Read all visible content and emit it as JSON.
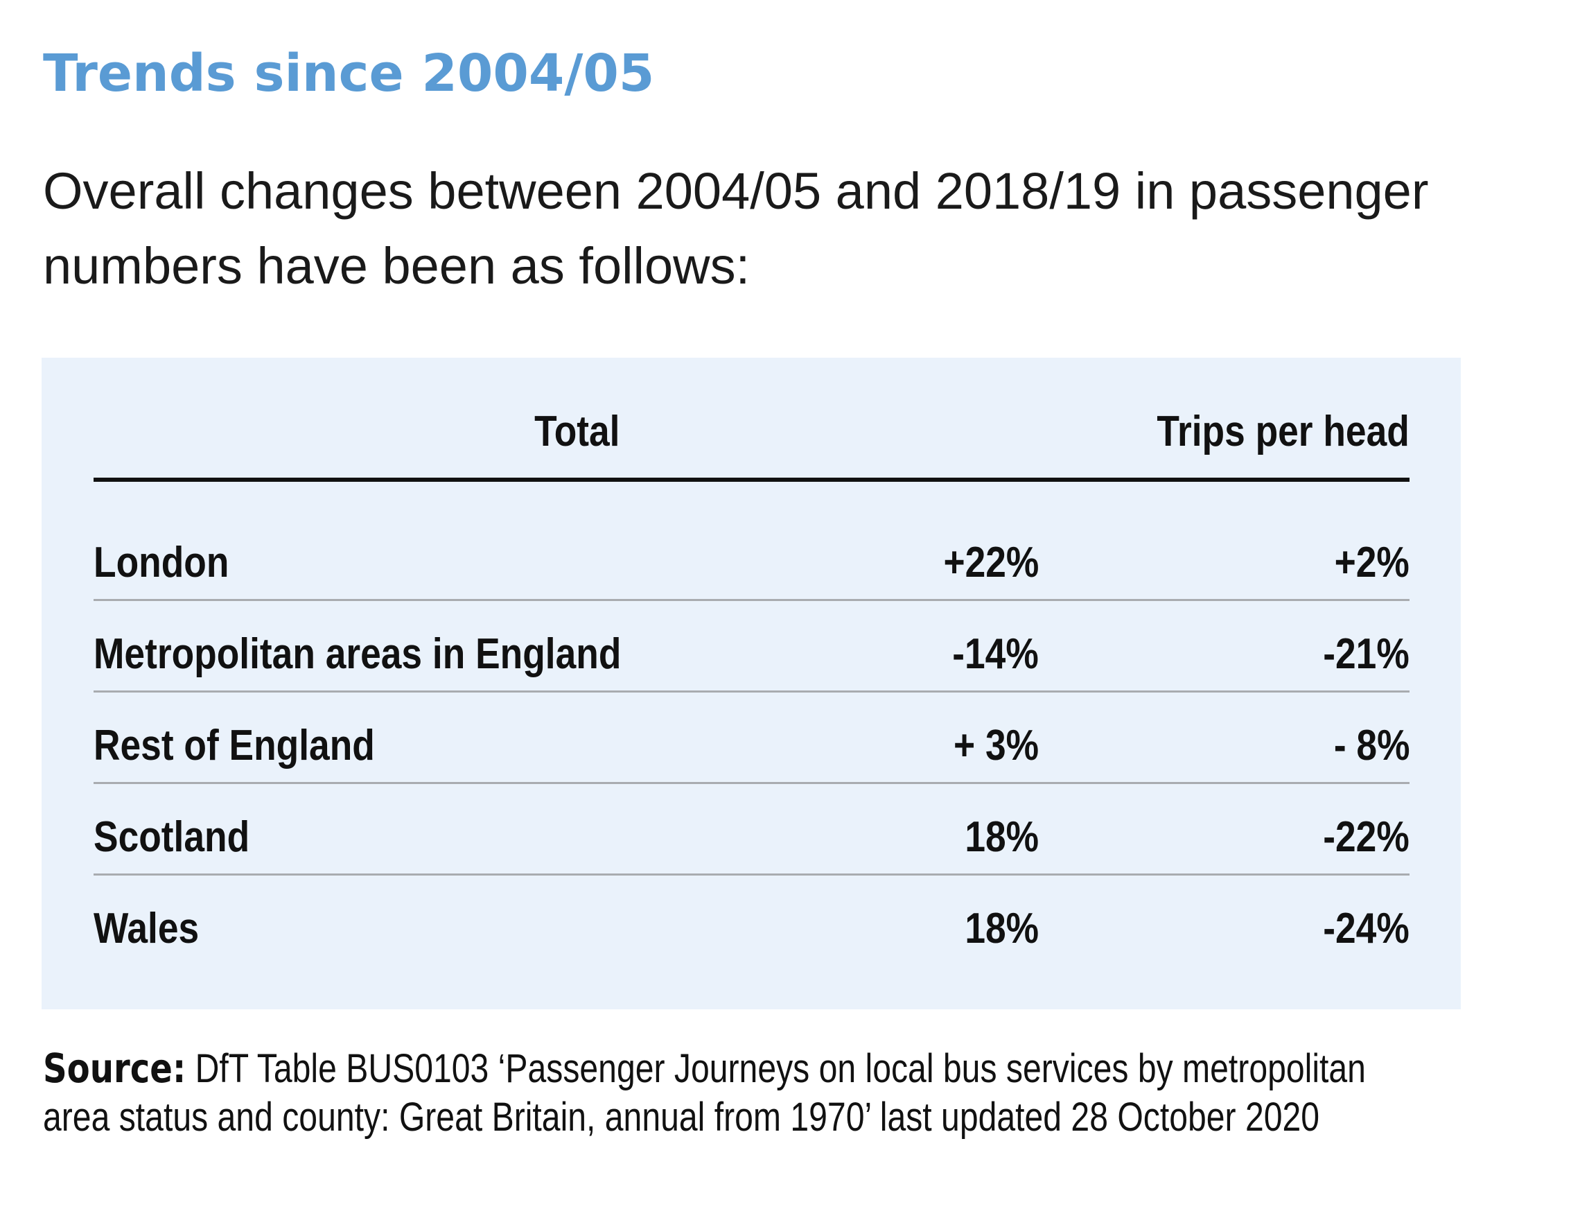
{
  "heading": "Trends since 2004/05",
  "intro": {
    "line1": "Overall changes between 2004/05 and 2018/19 in passenger",
    "line2": "numbers have been as follows:"
  },
  "table": {
    "columns": {
      "label": "",
      "total": "Total",
      "trips_per_head": "Trips per head"
    },
    "rows": [
      {
        "label": "London",
        "total": "+22%",
        "trips_per_head": "+2%"
      },
      {
        "label": "Metropolitan areas in England",
        "total": "-14%",
        "trips_per_head": "-21%"
      },
      {
        "label": "Rest of England",
        "total": "+ 3%",
        "trips_per_head": "- 8%"
      },
      {
        "label": "Scotland",
        "total": "18%",
        "trips_per_head": "-22%"
      },
      {
        "label": "Wales",
        "total": "18%",
        "trips_per_head": "-24%"
      }
    ]
  },
  "source": {
    "label": "Source:",
    "line1": "DfT Table BUS0103 ‘Passenger Journeys on local bus services by metropolitan",
    "line2": "area status and county: Great Britain, annual from 1970’ last updated 28 October 2020"
  },
  "colors": {
    "heading": "#5a9bd4",
    "table_background": "#eaf2fb",
    "header_rule": "#111111",
    "row_rule": "#a9acb0"
  }
}
